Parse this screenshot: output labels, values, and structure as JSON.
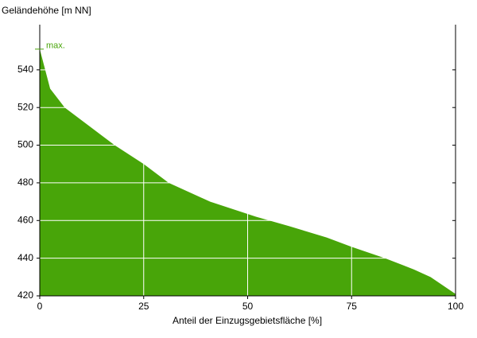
{
  "chart_data": {
    "type": "area",
    "ylabel": "Geländehöhe [m NN]",
    "xlabel": "Anteil der Einzugsgebietsfläche [%]",
    "x": [
      0,
      2.5,
      6,
      12,
      18,
      25,
      31,
      41,
      52,
      60,
      69,
      75,
      83,
      90,
      94,
      100
    ],
    "values": [
      551,
      530,
      520,
      510,
      500,
      490,
      480,
      470,
      462,
      457,
      451,
      446,
      440,
      434,
      430,
      421
    ],
    "color": "#48a509",
    "xlim": [
      0,
      100
    ],
    "ylim": [
      420,
      564
    ],
    "xticks": [
      0,
      25,
      50,
      75,
      100
    ],
    "yticks": [
      420,
      440,
      460,
      480,
      500,
      520,
      540
    ],
    "grid": true,
    "annotation": {
      "text": "max.",
      "value": 551
    }
  }
}
